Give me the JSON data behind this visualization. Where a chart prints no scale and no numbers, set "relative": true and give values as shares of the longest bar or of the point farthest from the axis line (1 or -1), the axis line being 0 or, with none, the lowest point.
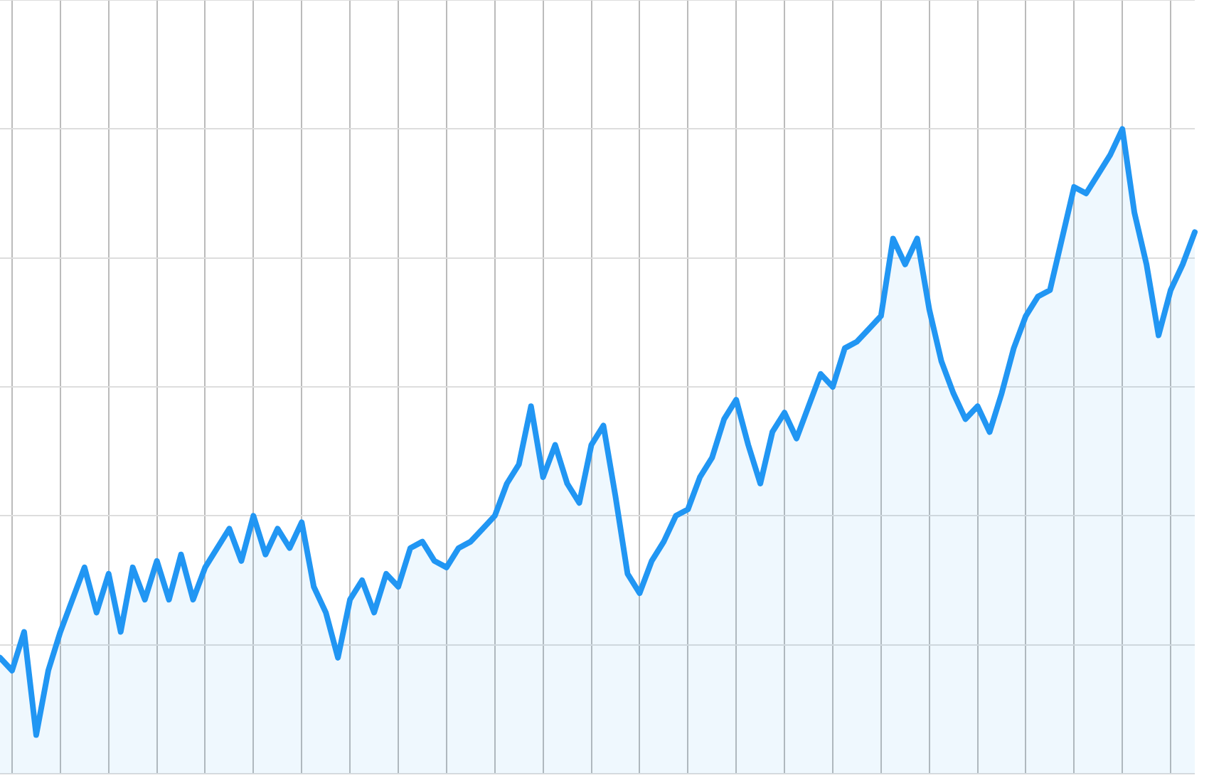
{
  "chart_data": {
    "type": "area",
    "relative": true,
    "grid": true,
    "marker": "none",
    "line_style": "solid",
    "categories": [
      null,
      null,
      null,
      null,
      null,
      null,
      null,
      null,
      null,
      null,
      null,
      null,
      null,
      null,
      null,
      null,
      null,
      null,
      null,
      null,
      null,
      null,
      null,
      null,
      null,
      null,
      null,
      null,
      null,
      null,
      null,
      null,
      null,
      null,
      null,
      null,
      null,
      null,
      null,
      null,
      null,
      null,
      null,
      null,
      null,
      null,
      null,
      null,
      null,
      null,
      null,
      null,
      null,
      null,
      null,
      null,
      null,
      null,
      null,
      null,
      null,
      null,
      null,
      null,
      null,
      null,
      null,
      null,
      null,
      null,
      null,
      null,
      null,
      null,
      null,
      null,
      null,
      null,
      null,
      null,
      null,
      null,
      null,
      null,
      null,
      null,
      null,
      null,
      null,
      null,
      null,
      null,
      null,
      null,
      null,
      null,
      null,
      null,
      null,
      null
    ],
    "series": [
      {
        "color": "#2196f3",
        "values": [
          0.18,
          0.16,
          0.22,
          0.06,
          0.16,
          0.22,
          0.27,
          0.32,
          0.25,
          0.31,
          0.22,
          0.32,
          0.27,
          0.33,
          0.27,
          0.34,
          0.27,
          0.32,
          0.35,
          0.38,
          0.33,
          0.4,
          0.34,
          0.38,
          0.35,
          0.39,
          0.29,
          0.25,
          0.18,
          0.27,
          0.3,
          0.25,
          0.31,
          0.29,
          0.35,
          0.36,
          0.33,
          0.32,
          0.35,
          0.36,
          0.38,
          0.4,
          0.45,
          0.48,
          0.57,
          0.46,
          0.51,
          0.45,
          0.42,
          0.51,
          0.54,
          0.43,
          0.31,
          0.28,
          0.33,
          0.36,
          0.4,
          0.41,
          0.46,
          0.49,
          0.55,
          0.58,
          0.51,
          0.45,
          0.53,
          0.56,
          0.52,
          0.57,
          0.62,
          0.6,
          0.66,
          0.67,
          0.69,
          0.71,
          0.83,
          0.79,
          0.83,
          0.72,
          0.64,
          0.59,
          0.55,
          0.57,
          0.53,
          0.59,
          0.66,
          0.71,
          0.74,
          0.75,
          0.83,
          0.91,
          0.9,
          0.93,
          0.96,
          1,
          0.87,
          0.79,
          0.68,
          0.75,
          0.79,
          0.84
        ]
      }
    ]
  }
}
